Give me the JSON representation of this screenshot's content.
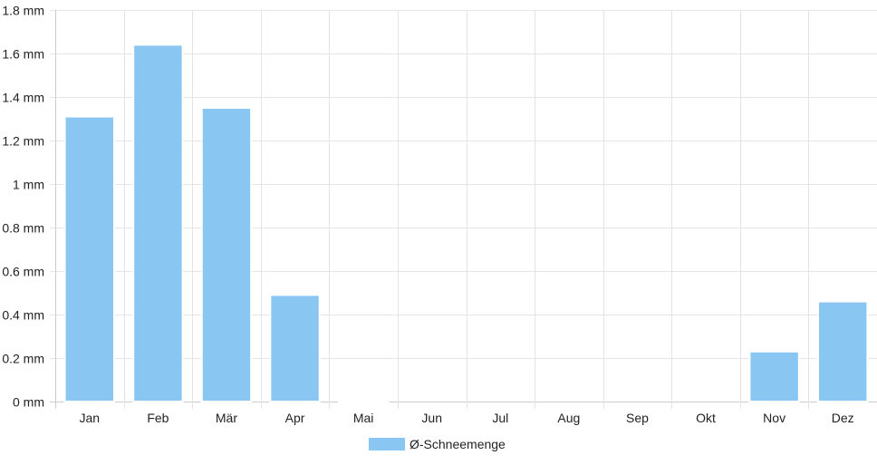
{
  "chart_data": {
    "type": "bar",
    "title": "",
    "xlabel": "",
    "ylabel": "",
    "categories": [
      "Jan",
      "Feb",
      "Mär",
      "Apr",
      "Mai",
      "Jun",
      "Jul",
      "Aug",
      "Sep",
      "Okt",
      "Nov",
      "Dez"
    ],
    "series": [
      {
        "name": "Ø-Schneemenge",
        "values": [
          1.31,
          1.64,
          1.35,
          0.49,
          0.003,
          0,
          0,
          0,
          0,
          0,
          0.23,
          0.46
        ]
      }
    ],
    "ylim": [
      0,
      1.8
    ],
    "y_ticks": [
      0,
      0.2,
      0.4,
      0.6,
      0.8,
      1,
      1.2,
      1.4,
      1.6,
      1.8
    ],
    "y_tick_labels": [
      "0 mm",
      "0.2 mm",
      "0.4 mm",
      "0.6 mm",
      "0.8 mm",
      "1 mm",
      "1.2 mm",
      "1.4 mm",
      "1.6 mm",
      "1.8 mm"
    ],
    "grid": true,
    "legend_position": "bottom-center",
    "colors": {
      "bar_fill": "#89c7f2",
      "bar_stroke": "#ffffff"
    }
  }
}
